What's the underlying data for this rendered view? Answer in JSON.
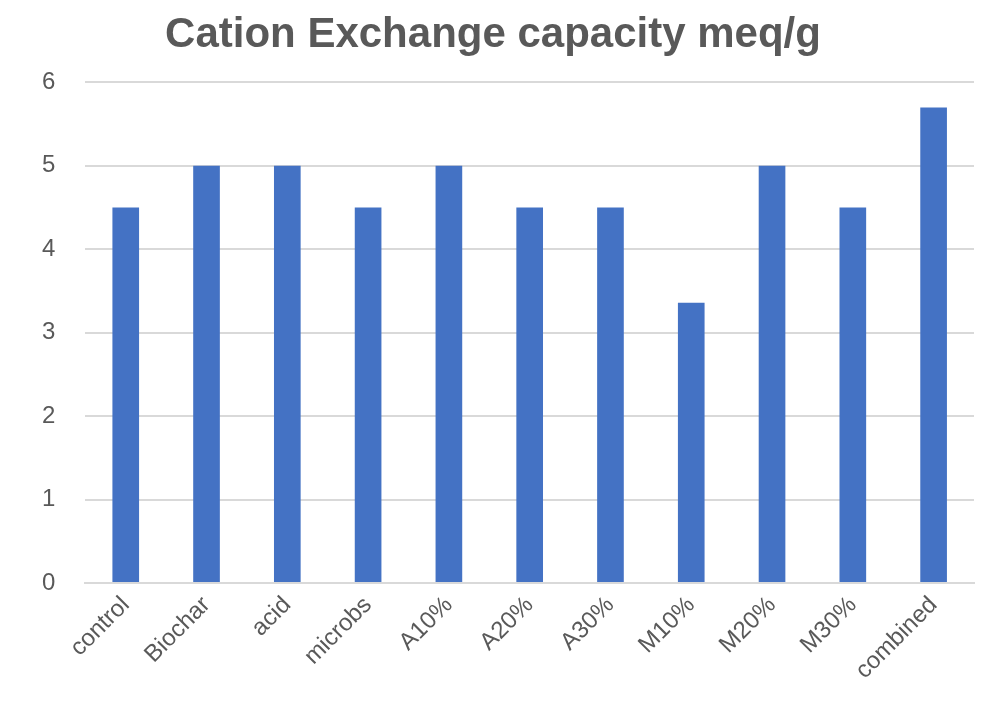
{
  "chart_data": {
    "type": "bar",
    "title": "Cation Exchange capacity meq/g",
    "categories": [
      "control",
      "Biochar",
      "acid",
      "microbs",
      "A10%",
      "A20%",
      "A30%",
      "M10%",
      "M20%",
      "M30%",
      "combined"
    ],
    "values": [
      4.5,
      5,
      5,
      4.5,
      5,
      4.5,
      4.5,
      3.36,
      5,
      4.5,
      5.7
    ],
    "color": "#4472c4",
    "ylim": [
      0,
      6
    ],
    "yticks": [
      0,
      1,
      2,
      3,
      4,
      5,
      6
    ],
    "grid": "y"
  }
}
